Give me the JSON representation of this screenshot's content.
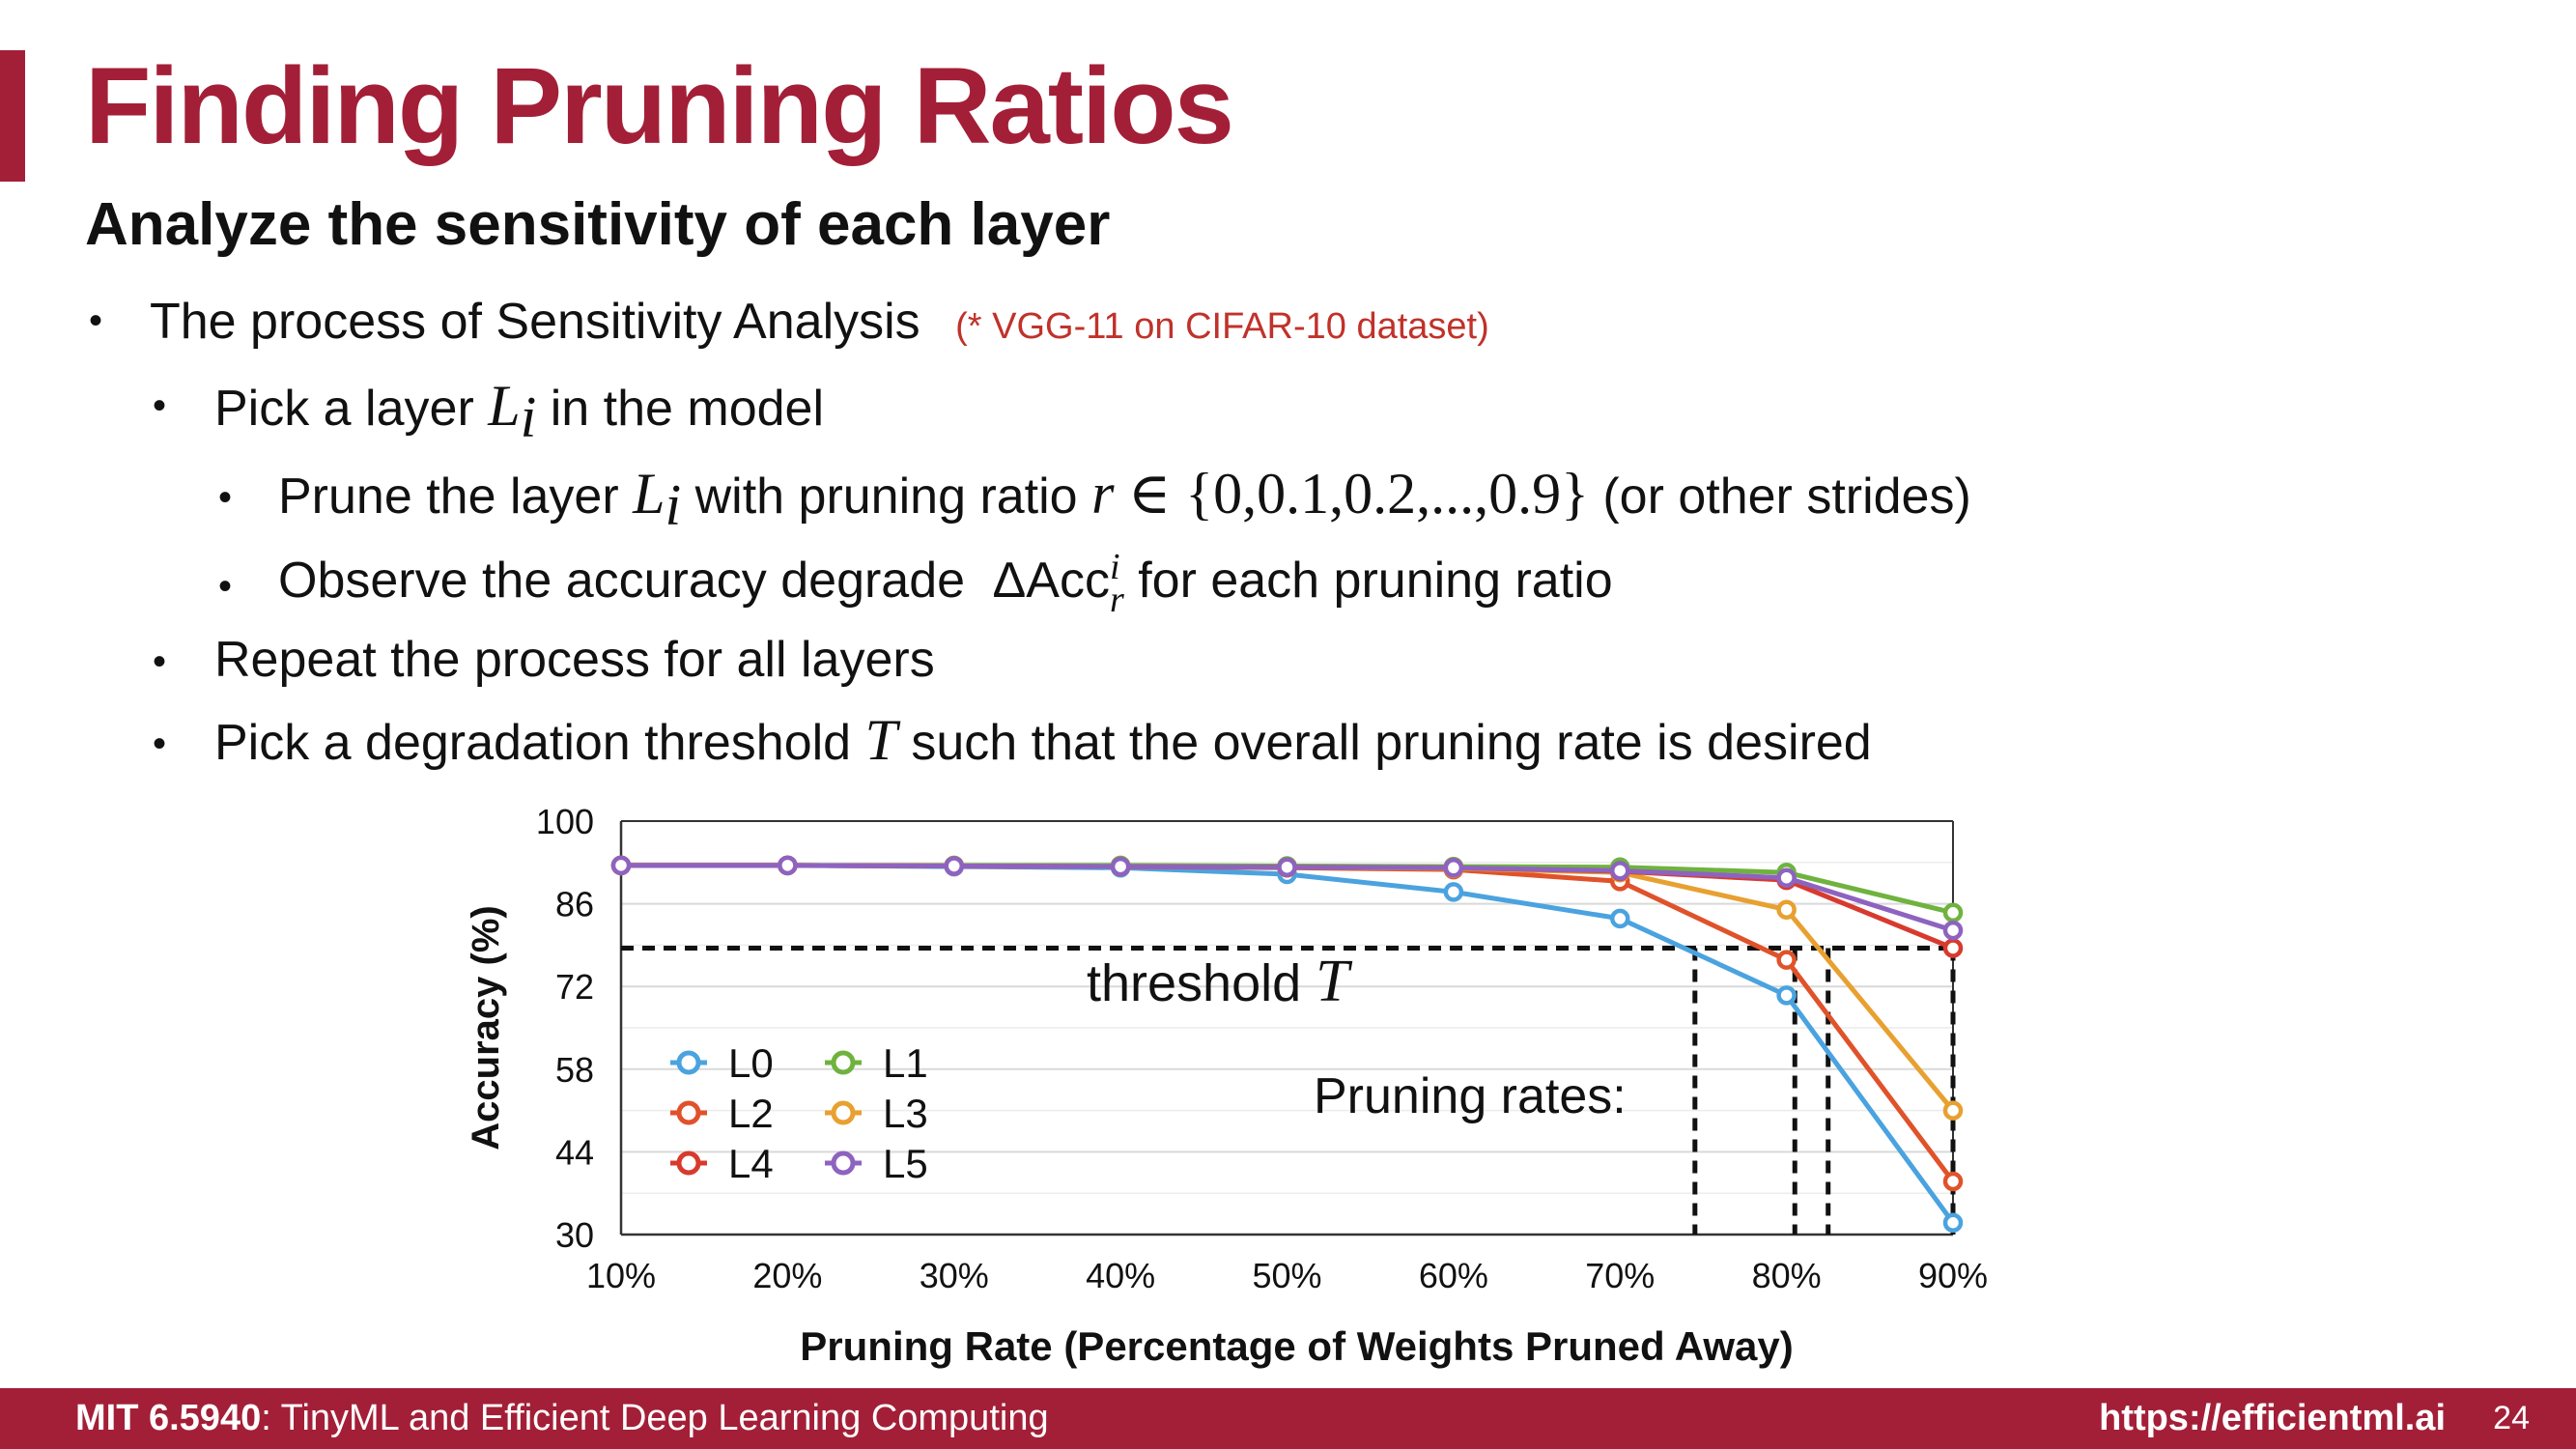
{
  "colors": {
    "brand": "#a31f37",
    "note": "#c0322a",
    "L0": "#4aa3df",
    "L1": "#6fb33f",
    "L2": "#e0522a",
    "L3": "#e8a030",
    "L4": "#d83a2e",
    "L5": "#8e63c0"
  },
  "slide": {
    "title": "Finding Pruning Ratios",
    "subtitle": "Analyze the sensitivity of each layer",
    "bullets": {
      "b1_text": "The process of Sensitivity Analysis",
      "b1_note": "(* VGG-11 on CIFAR-10 dataset)",
      "b2_pre": "Pick a layer",
      "b2_var": "L",
      "b2_sub": "i",
      "b2_post": "in the model",
      "b3_pre": "Prune the layer",
      "b3_var": "L",
      "b3_sub": "i",
      "b3_mid": "with pruning ratio",
      "b3_math_var": "r",
      "b3_math_set": "∈ {0,0.1,0.2,...,0.9}",
      "b3_post": "(or other strides)",
      "b4_pre": "Observe the accuracy degrade",
      "b4_math": "ΔAcc",
      "b4_sup": "i",
      "b4_sub": "r",
      "b4_post": "for each pruning ratio",
      "b5_text": "Repeat the process for all layers",
      "b6_pre": "Pick a degradation threshold",
      "b6_var": "T",
      "b6_post": "such that the overall pruning rate is desired"
    }
  },
  "chart_data": {
    "type": "line",
    "x": [
      "10%",
      "20%",
      "30%",
      "40%",
      "50%",
      "60%",
      "70%",
      "80%",
      "90%"
    ],
    "ylabel": "Accuracy (%)",
    "xlabel": "Pruning Rate (Percentage of Weights Pruned Away)",
    "ylim": [
      30,
      100
    ],
    "yticks": [
      "100",
      "86",
      "72",
      "58",
      "44",
      "30"
    ],
    "grid": true,
    "legend_position": "bottom-left",
    "series": [
      {
        "name": "L0",
        "color_key": "L0",
        "values": [
          92.5,
          92.5,
          92.3,
          92.1,
          91,
          88,
          83.5,
          70.5,
          32
        ]
      },
      {
        "name": "L1",
        "color_key": "L1",
        "values": [
          92.5,
          92.5,
          92.5,
          92.5,
          92.4,
          92.3,
          92.2,
          91.3,
          84.5
        ]
      },
      {
        "name": "L2",
        "color_key": "L2",
        "values": [
          92.5,
          92.5,
          92.4,
          92.3,
          92.1,
          91.8,
          89.8,
          76.5,
          39
        ]
      },
      {
        "name": "L3",
        "color_key": "L3",
        "values": [
          92.5,
          92.5,
          92.4,
          92.3,
          92.2,
          92,
          91.3,
          85,
          51
        ]
      },
      {
        "name": "L4",
        "color_key": "L4",
        "values": [
          92.5,
          92.5,
          92.4,
          92.3,
          92.2,
          92.1,
          91.5,
          90,
          78.5
        ]
      },
      {
        "name": "L5",
        "color_key": "L5",
        "values": [
          92.5,
          92.5,
          92.4,
          92.3,
          92.2,
          92.1,
          91.6,
          90.4,
          81.5
        ]
      }
    ],
    "threshold": {
      "value": 78.5,
      "label": "threshold",
      "label_var": "T"
    },
    "pruning_rates": {
      "label": "Pruning rates:",
      "x_values": [
        74.5,
        80.5,
        82.5,
        90
      ]
    }
  },
  "footer": {
    "course_code": "MIT 6.5940",
    "course_name": ": TinyML and Efficient Deep Learning Computing",
    "url": "https://efficientml.ai",
    "page": "24"
  }
}
